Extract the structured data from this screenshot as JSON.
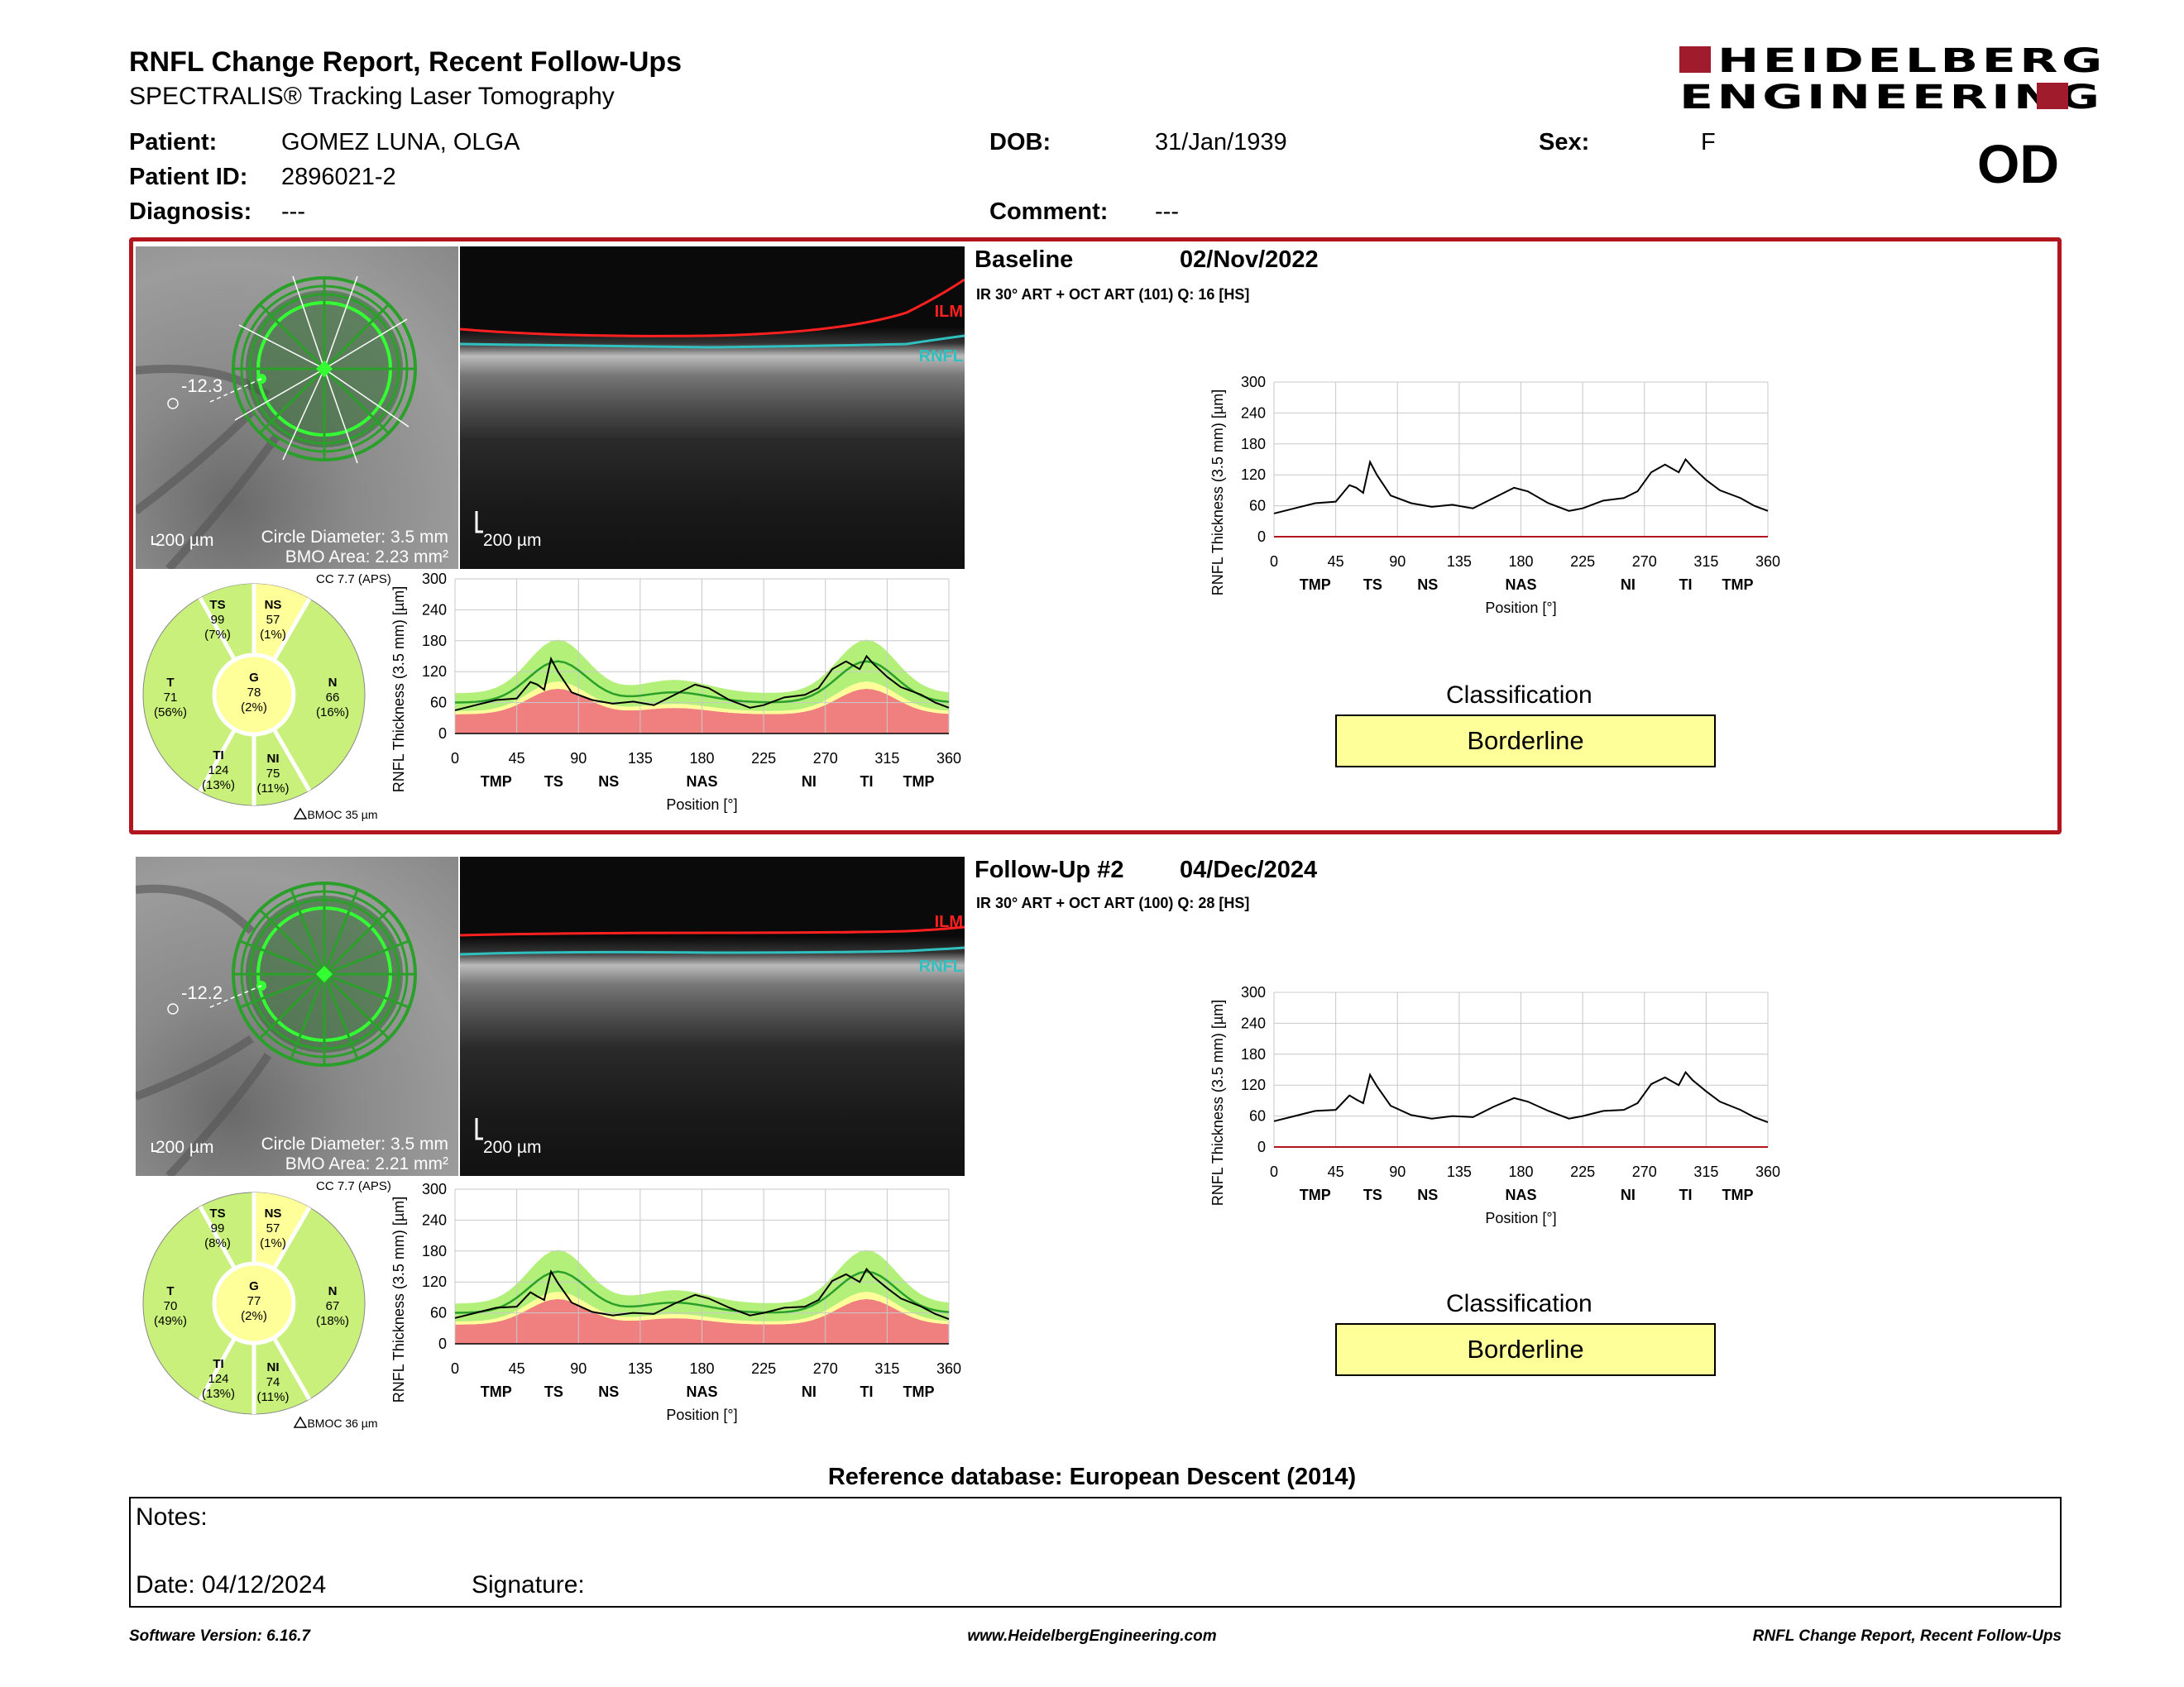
{
  "header": {
    "title": "RNFL Change Report, Recent Follow-Ups",
    "subtitle": "SPECTRALIS® Tracking Laser Tomography",
    "logo_line1": "HEIDELBERG",
    "logo_line2": "ENGINEERING",
    "eye": "OD"
  },
  "patient": {
    "patient_label": "Patient:",
    "patient_value": "GOMEZ LUNA, OLGA",
    "id_label": "Patient ID:",
    "id_value": "2896021-2",
    "diagnosis_label": "Diagnosis:",
    "diagnosis_value": "---",
    "dob_label": "DOB:",
    "dob_value": "31/Jan/1939",
    "comment_label": "Comment:",
    "comment_value": "---",
    "sex_label": "Sex:",
    "sex_value": "F"
  },
  "exams": [
    {
      "name": "Baseline",
      "date": "02/Nov/2022",
      "scan_info": "IR 30° ART + OCT ART (101) Q: 16 [HS]",
      "fundus_angle": "-12.3",
      "fundus_scale": "200 µm",
      "circle_diameter": "Circle Diameter: 3.5 mm",
      "bmo_area": "BMO Area: 2.23 mm²",
      "oct_scale": "200 µm",
      "ilm": "ILM",
      "rnfl": "RNFL",
      "cc": "CC 7.7 (APS)",
      "bmoc": "BMOC 35 µm",
      "sectors": {
        "TS": {
          "name": "TS",
          "value": "99",
          "pct": "(7%)"
        },
        "NS": {
          "name": "NS",
          "value": "57",
          "pct": "(1%)"
        },
        "T": {
          "name": "T",
          "value": "71",
          "pct": "(56%)"
        },
        "G": {
          "name": "G",
          "value": "78",
          "pct": "(2%)"
        },
        "N": {
          "name": "N",
          "value": "66",
          "pct": "(16%)"
        },
        "TI": {
          "name": "TI",
          "value": "124",
          "pct": "(13%)"
        },
        "NI": {
          "name": "NI",
          "value": "75",
          "pct": "(11%)"
        }
      },
      "classification_title": "Classification",
      "classification": "Borderline"
    },
    {
      "name": "Follow-Up #2",
      "date": "04/Dec/2024",
      "scan_info": "IR 30° ART + OCT ART (100) Q: 28 [HS]",
      "fundus_angle": "-12.2",
      "fundus_scale": "200 µm",
      "circle_diameter": "Circle Diameter: 3.5 mm",
      "bmo_area": "BMO Area: 2.21 mm²",
      "oct_scale": "200 µm",
      "ilm": "ILM",
      "rnfl": "RNFL",
      "cc": "CC 7.7 (APS)",
      "bmoc": "BMOC 36 µm",
      "sectors": {
        "TS": {
          "name": "TS",
          "value": "99",
          "pct": "(8%)"
        },
        "NS": {
          "name": "NS",
          "value": "57",
          "pct": "(1%)"
        },
        "T": {
          "name": "T",
          "value": "70",
          "pct": "(49%)"
        },
        "G": {
          "name": "G",
          "value": "77",
          "pct": "(2%)"
        },
        "N": {
          "name": "N",
          "value": "67",
          "pct": "(18%)"
        },
        "TI": {
          "name": "TI",
          "value": "124",
          "pct": "(13%)"
        },
        "NI": {
          "name": "NI",
          "value": "74",
          "pct": "(11%)"
        }
      },
      "classification_title": "Classification",
      "classification": "Borderline"
    }
  ],
  "colors": {
    "within_normal": "#c8f07a",
    "borderline": "#ffff99",
    "outside_normal": "#f08080",
    "normal_band": "#b3f079",
    "mean_line": "#2aa02a",
    "panel_border": "#b3151f",
    "ilm": "#ff2020",
    "rnfl": "#30c0c0"
  },
  "chart_data": [
    {
      "type": "line",
      "ylabel": "RNFL Thickness (3.5 mm) [µm]",
      "xlabel": "Position [°]",
      "ylim": [
        0,
        300
      ],
      "xlim": [
        0,
        360
      ],
      "yticks": [
        "0",
        "60",
        "120",
        "180",
        "240",
        "300"
      ],
      "xticks": [
        "0",
        "45",
        "90",
        "135",
        "180",
        "225",
        "270",
        "315",
        "360"
      ],
      "sector_labels": [
        "TMP",
        "TS",
        "NS",
        "NAS",
        "NI",
        "TI",
        "TMP"
      ],
      "x": [
        0,
        15,
        30,
        45,
        55,
        60,
        65,
        70,
        75,
        85,
        100,
        115,
        130,
        145,
        160,
        175,
        185,
        200,
        215,
        225,
        240,
        255,
        265,
        275,
        285,
        295,
        300,
        305,
        315,
        325,
        340,
        350,
        360
      ],
      "series": [
        {
          "values": [
            45,
            55,
            65,
            68,
            100,
            95,
            85,
            145,
            120,
            80,
            65,
            58,
            62,
            55,
            75,
            95,
            88,
            65,
            50,
            55,
            70,
            75,
            88,
            125,
            140,
            125,
            150,
            135,
            110,
            90,
            75,
            60,
            50
          ]
        }
      ]
    },
    {
      "type": "line",
      "ylabel": "RNFL Thickness (3.5 mm) [µm]",
      "xlabel": "Position [°]",
      "ylim": [
        0,
        300
      ],
      "xlim": [
        0,
        360
      ],
      "yticks": [
        "0",
        "60",
        "120",
        "180",
        "240",
        "300"
      ],
      "xticks": [
        "0",
        "45",
        "90",
        "135",
        "180",
        "225",
        "270",
        "315",
        "360"
      ],
      "sector_labels": [
        "TMP",
        "TS",
        "NS",
        "NAS",
        "NI",
        "TI",
        "TMP"
      ],
      "x": [
        0,
        15,
        30,
        45,
        55,
        60,
        65,
        70,
        75,
        85,
        100,
        115,
        130,
        145,
        160,
        175,
        185,
        200,
        215,
        225,
        240,
        255,
        265,
        275,
        285,
        295,
        300,
        305,
        315,
        325,
        340,
        350,
        360
      ],
      "series": [
        {
          "values": [
            50,
            60,
            70,
            72,
            100,
            92,
            85,
            140,
            118,
            80,
            62,
            55,
            60,
            58,
            78,
            95,
            88,
            70,
            55,
            60,
            70,
            72,
            85,
            122,
            135,
            120,
            145,
            130,
            108,
            88,
            72,
            58,
            48
          ]
        }
      ]
    }
  ]
}
